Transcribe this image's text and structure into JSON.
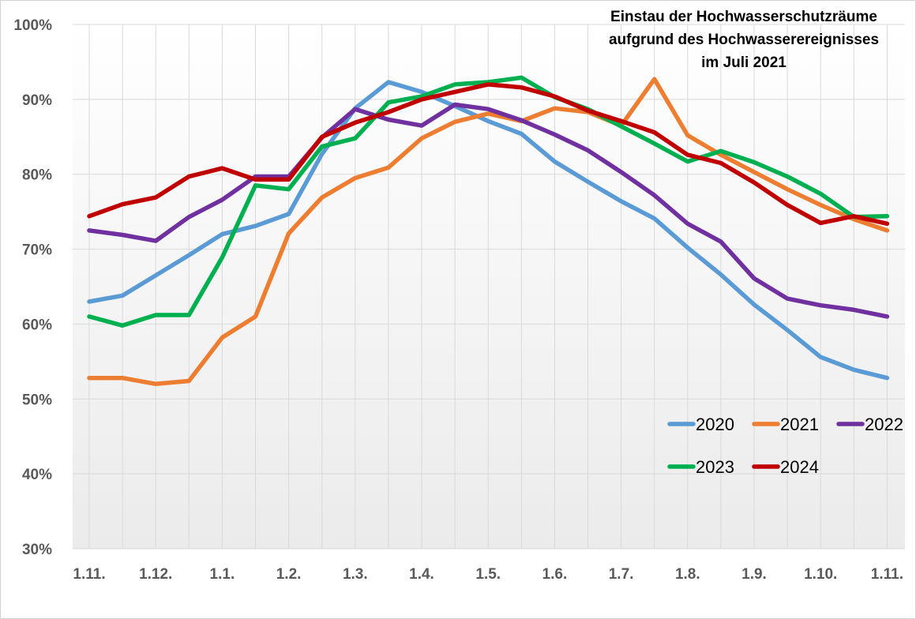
{
  "chart_data": {
    "type": "line",
    "title_lines": [
      "Einstau der Hochwasserschutzräume",
      "aufgrund des Hochwasserereignisses",
      "im Juli 2021"
    ],
    "xlabel": "",
    "ylabel": "",
    "x_tick_labels": [
      "1.11.",
      "1.12.",
      "1.1.",
      "1.2.",
      "1.3.",
      "1.4.",
      "1.5.",
      "1.6.",
      "1.7.",
      "1.8.",
      "1.9.",
      "1.10.",
      "1.11."
    ],
    "y_tick_labels": [
      "30%",
      "40%",
      "50%",
      "60%",
      "70%",
      "80%",
      "90%",
      "100%"
    ],
    "ylim": [
      30,
      100
    ],
    "y_unit": "%",
    "grid": true,
    "legend_position": "bottom-right",
    "x_points": 25,
    "series": [
      {
        "name": "2020",
        "color": "#5b9bd5",
        "values": [
          63.0,
          63.8,
          66.5,
          69.2,
          72.0,
          73.1,
          74.7,
          82.7,
          88.8,
          92.3,
          91.0,
          89.1,
          87.1,
          85.4,
          81.7,
          79.0,
          76.4,
          74.1,
          70.2,
          66.6,
          62.6,
          59.2,
          55.6,
          53.9,
          52.8
        ]
      },
      {
        "name": "2021",
        "color": "#ed7d31",
        "values": [
          52.8,
          52.8,
          52.0,
          52.4,
          58.2,
          61.0,
          72.1,
          76.9,
          79.5,
          80.9,
          84.8,
          87.0,
          88.1,
          87.1,
          88.8,
          88.3,
          86.5,
          92.7,
          85.2,
          82.6,
          80.3,
          78.0,
          75.9,
          74.0,
          72.5
        ]
      },
      {
        "name": "2022",
        "color": "#7030a0",
        "values": [
          72.5,
          71.9,
          71.1,
          74.3,
          76.6,
          79.7,
          79.7,
          84.9,
          88.7,
          87.3,
          86.5,
          89.3,
          88.7,
          87.2,
          85.3,
          83.2,
          80.3,
          77.2,
          73.4,
          71.0,
          66.1,
          63.4,
          62.5,
          61.9,
          61.0
        ]
      },
      {
        "name": "2023",
        "color": "#00b050",
        "values": [
          61.0,
          59.8,
          61.2,
          61.2,
          68.9,
          78.5,
          78.0,
          83.7,
          84.8,
          89.6,
          90.4,
          92.0,
          92.3,
          92.9,
          90.3,
          88.7,
          86.4,
          84.1,
          81.7,
          83.1,
          81.6,
          79.7,
          77.4,
          74.3,
          74.4
        ]
      },
      {
        "name": "2024",
        "color": "#c00000",
        "values": [
          74.4,
          76.0,
          76.9,
          79.7,
          80.8,
          79.3,
          79.3,
          85.0,
          86.9,
          88.3,
          90.0,
          91.0,
          92.0,
          91.6,
          90.4,
          88.5,
          87.1,
          85.6,
          82.6,
          81.5,
          78.9,
          75.9,
          73.5,
          74.4,
          73.4
        ]
      }
    ]
  }
}
